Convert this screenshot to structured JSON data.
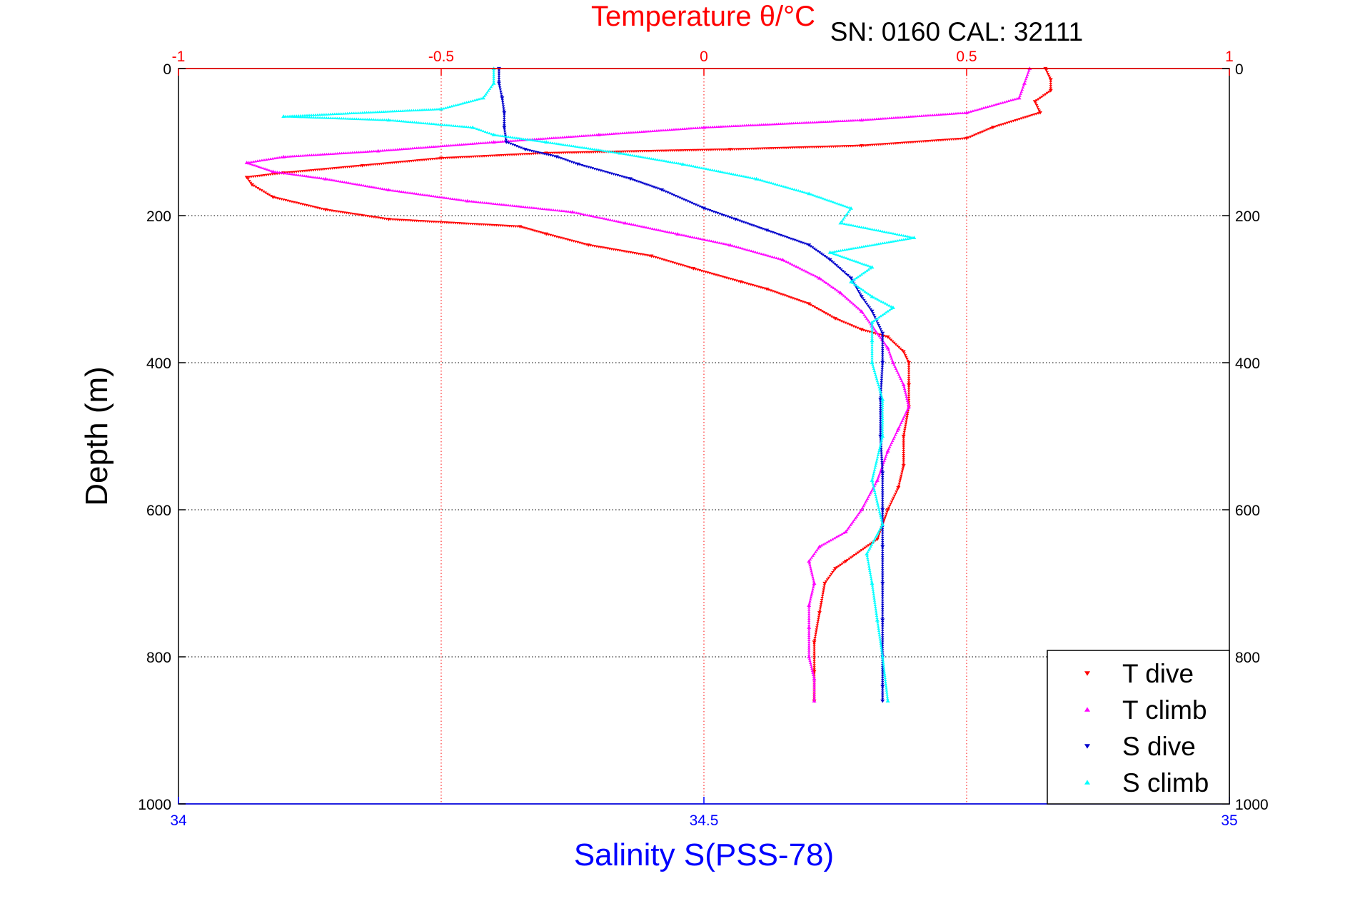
{
  "chart_data": {
    "type": "scatter",
    "title": "SN: 0160  CAL: 32111",
    "top_axis": {
      "label": "Temperature θ/°C",
      "range": [
        -1,
        1
      ],
      "ticks": [
        -1,
        -0.5,
        0,
        0.5,
        1
      ],
      "tick_labels": [
        "-1",
        "-0.5",
        "0",
        "0.5",
        "1"
      ],
      "color": "#ff0000"
    },
    "bottom_axis": {
      "label": "Salinity S(PSS-78)",
      "range": [
        34,
        35
      ],
      "ticks": [
        34,
        34.5,
        35
      ],
      "tick_labels": [
        "34",
        "34.5",
        "35"
      ],
      "color": "#0000ff"
    },
    "y_axis": {
      "label": "Depth (m)",
      "range": [
        0,
        1000
      ],
      "reversed": true,
      "ticks": [
        0,
        200,
        400,
        600,
        800,
        1000
      ],
      "tick_labels": [
        "0",
        "200",
        "400",
        "600",
        "800",
        "1000"
      ]
    },
    "grid": true,
    "legend_position": "bottom-right",
    "series": [
      {
        "name": "T dive",
        "axis": "temperature",
        "color": "#ff0000",
        "marker": "triangle-down",
        "points": [
          [
            0.65,
            0
          ],
          [
            0.66,
            15
          ],
          [
            0.66,
            30
          ],
          [
            0.63,
            45
          ],
          [
            0.64,
            60
          ],
          [
            0.55,
            80
          ],
          [
            0.5,
            95
          ],
          [
            0.3,
            105
          ],
          [
            0.05,
            110
          ],
          [
            -0.3,
            115
          ],
          [
            -0.5,
            122
          ],
          [
            -0.65,
            132
          ],
          [
            -0.8,
            142
          ],
          [
            -0.87,
            148
          ],
          [
            -0.86,
            158
          ],
          [
            -0.82,
            175
          ],
          [
            -0.72,
            192
          ],
          [
            -0.6,
            205
          ],
          [
            -0.35,
            215
          ],
          [
            -0.3,
            225
          ],
          [
            -0.22,
            240
          ],
          [
            -0.1,
            255
          ],
          [
            -0.02,
            272
          ],
          [
            0.07,
            290
          ],
          [
            0.12,
            300
          ],
          [
            0.2,
            320
          ],
          [
            0.25,
            340
          ],
          [
            0.3,
            355
          ],
          [
            0.35,
            365
          ],
          [
            0.38,
            385
          ],
          [
            0.39,
            400
          ],
          [
            0.39,
            430
          ],
          [
            0.39,
            460
          ],
          [
            0.38,
            500
          ],
          [
            0.38,
            540
          ],
          [
            0.37,
            570
          ],
          [
            0.35,
            600
          ],
          [
            0.33,
            640
          ],
          [
            0.27,
            670
          ],
          [
            0.25,
            680
          ],
          [
            0.23,
            700
          ],
          [
            0.22,
            740
          ],
          [
            0.21,
            780
          ],
          [
            0.21,
            820
          ],
          [
            0.21,
            860
          ]
        ]
      },
      {
        "name": "T climb",
        "axis": "temperature",
        "color": "#ff00ff",
        "marker": "triangle-up",
        "points": [
          [
            0.62,
            0
          ],
          [
            0.61,
            20
          ],
          [
            0.6,
            40
          ],
          [
            0.5,
            60
          ],
          [
            0.3,
            70
          ],
          [
            0.0,
            80
          ],
          [
            -0.2,
            90
          ],
          [
            -0.4,
            100
          ],
          [
            -0.62,
            112
          ],
          [
            -0.8,
            120
          ],
          [
            -0.87,
            128
          ],
          [
            -0.82,
            140
          ],
          [
            -0.72,
            150
          ],
          [
            -0.6,
            165
          ],
          [
            -0.45,
            180
          ],
          [
            -0.25,
            195
          ],
          [
            -0.15,
            210
          ],
          [
            -0.05,
            225
          ],
          [
            0.05,
            240
          ],
          [
            0.15,
            260
          ],
          [
            0.22,
            285
          ],
          [
            0.26,
            305
          ],
          [
            0.3,
            330
          ],
          [
            0.32,
            350
          ],
          [
            0.35,
            380
          ],
          [
            0.36,
            400
          ],
          [
            0.38,
            430
          ],
          [
            0.39,
            460
          ],
          [
            0.37,
            490
          ],
          [
            0.35,
            520
          ],
          [
            0.33,
            560
          ],
          [
            0.3,
            600
          ],
          [
            0.27,
            630
          ],
          [
            0.22,
            650
          ],
          [
            0.2,
            670
          ],
          [
            0.21,
            700
          ],
          [
            0.2,
            730
          ],
          [
            0.2,
            760
          ],
          [
            0.2,
            800
          ],
          [
            0.21,
            830
          ],
          [
            0.21,
            860
          ]
        ]
      },
      {
        "name": "S dive",
        "axis": "salinity",
        "color": "#0000cc",
        "marker": "triangle-down",
        "points": [
          [
            34.305,
            0
          ],
          [
            34.305,
            20
          ],
          [
            34.308,
            40
          ],
          [
            34.31,
            60
          ],
          [
            34.31,
            80
          ],
          [
            34.312,
            100
          ],
          [
            34.33,
            110
          ],
          [
            34.36,
            120
          ],
          [
            34.38,
            130
          ],
          [
            34.43,
            150
          ],
          [
            34.46,
            165
          ],
          [
            34.5,
            190
          ],
          [
            34.53,
            205
          ],
          [
            34.56,
            220
          ],
          [
            34.6,
            240
          ],
          [
            34.62,
            260
          ],
          [
            34.64,
            285
          ],
          [
            34.65,
            310
          ],
          [
            34.66,
            330
          ],
          [
            34.67,
            360
          ],
          [
            34.67,
            400
          ],
          [
            34.668,
            450
          ],
          [
            34.668,
            500
          ],
          [
            34.67,
            550
          ],
          [
            34.67,
            600
          ],
          [
            34.67,
            650
          ],
          [
            34.67,
            700
          ],
          [
            34.67,
            750
          ],
          [
            34.67,
            800
          ],
          [
            34.67,
            840
          ],
          [
            34.67,
            860
          ]
        ]
      },
      {
        "name": "S climb",
        "axis": "salinity",
        "color": "#00ffff",
        "marker": "triangle-up",
        "points": [
          [
            34.3,
            0
          ],
          [
            34.3,
            20
          ],
          [
            34.29,
            40
          ],
          [
            34.25,
            55
          ],
          [
            34.1,
            65
          ],
          [
            34.2,
            70
          ],
          [
            34.28,
            80
          ],
          [
            34.3,
            90
          ],
          [
            34.35,
            100
          ],
          [
            34.42,
            115
          ],
          [
            34.48,
            130
          ],
          [
            34.55,
            150
          ],
          [
            34.6,
            170
          ],
          [
            34.64,
            190
          ],
          [
            34.63,
            210
          ],
          [
            34.7,
            230
          ],
          [
            34.62,
            250
          ],
          [
            34.66,
            270
          ],
          [
            34.64,
            290
          ],
          [
            34.66,
            310
          ],
          [
            34.68,
            325
          ],
          [
            34.66,
            345
          ],
          [
            34.66,
            370
          ],
          [
            34.66,
            400
          ],
          [
            34.67,
            450
          ],
          [
            34.67,
            500
          ],
          [
            34.66,
            560
          ],
          [
            34.67,
            620
          ],
          [
            34.655,
            660
          ],
          [
            34.66,
            700
          ],
          [
            34.665,
            750
          ],
          [
            34.67,
            800
          ],
          [
            34.675,
            860
          ]
        ]
      }
    ]
  }
}
